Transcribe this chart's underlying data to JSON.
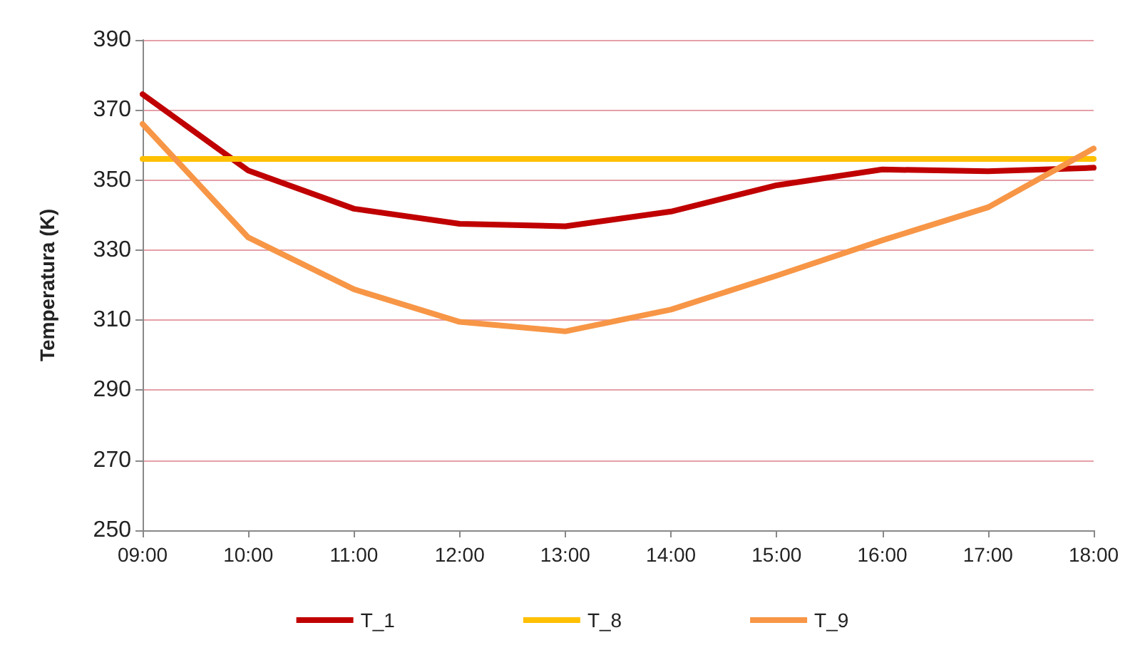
{
  "chart_data": {
    "type": "line",
    "ylabel": "Temperatura (K)",
    "categories": [
      "09:00",
      "10:00",
      "11:00",
      "12:00",
      "13:00",
      "14:00",
      "15:00",
      "16:00",
      "17:00",
      "18:00"
    ],
    "series": [
      {
        "name": "T_1",
        "color": "#c00000",
        "values": [
          374.5,
          352.7,
          341.8,
          337.5,
          336.8,
          341,
          348.5,
          353,
          352.5,
          353.5
        ]
      },
      {
        "name": "T_8",
        "color": "#ffc000",
        "values": [
          356,
          356,
          356,
          356,
          356,
          356,
          356,
          356,
          356,
          356
        ]
      },
      {
        "name": "T_9",
        "color": "#f79646",
        "values": [
          366,
          333.6,
          318.8,
          309.5,
          306.8,
          313,
          322.7,
          332.8,
          342.2,
          359
        ]
      }
    ],
    "ylim": [
      250,
      390
    ],
    "yticks": [
      250,
      270,
      290,
      310,
      330,
      350,
      370,
      390
    ],
    "grid": "y",
    "legend": "bottom",
    "marker": "none",
    "line_style": "solid"
  }
}
